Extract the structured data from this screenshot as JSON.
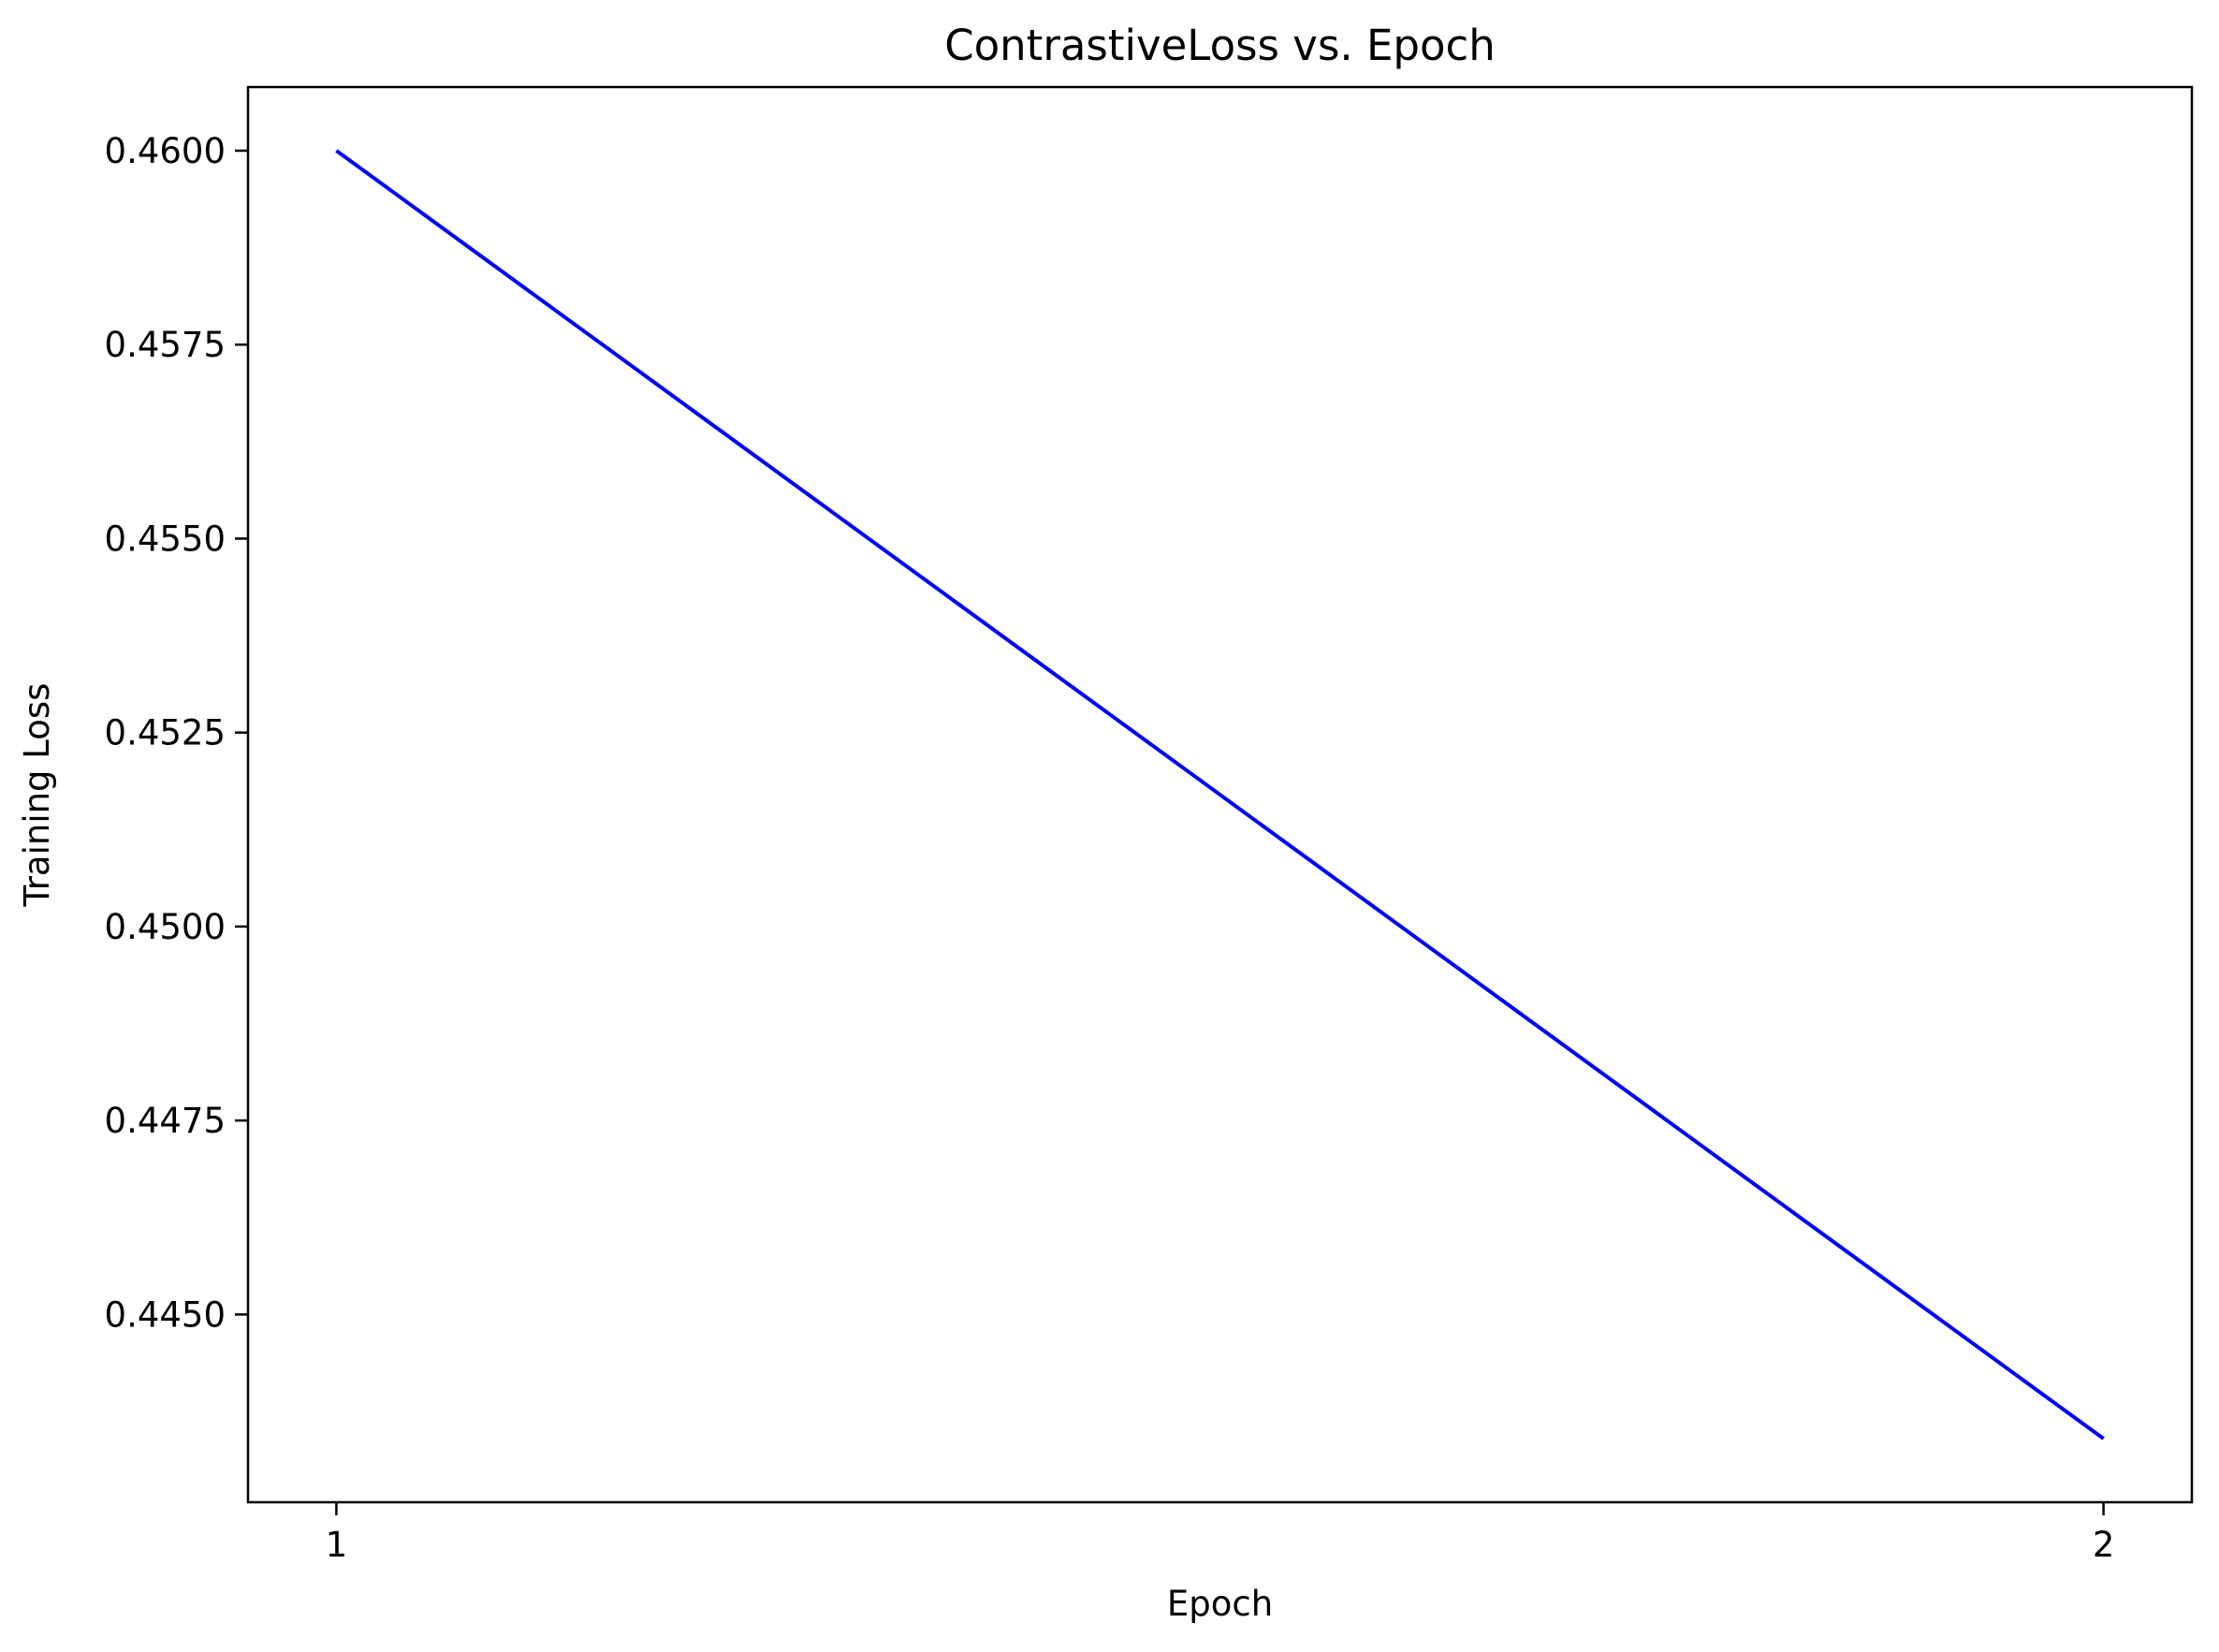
{
  "chart_data": {
    "type": "line",
    "title": "ContrastiveLoss vs. Epoch",
    "xlabel": "Epoch",
    "ylabel": "Training Loss",
    "x": [
      1,
      2
    ],
    "series": [
      {
        "values": [
          0.46,
          0.4434
        ],
        "color": "#0000ff"
      }
    ],
    "xlim": [
      0.95,
      2.05
    ],
    "ylim": [
      0.44258,
      0.46082
    ],
    "xticks": [
      1,
      2
    ],
    "xtick_labels": [
      "1",
      "2"
    ],
    "yticks": [
      0.445,
      0.4475,
      0.45,
      0.4525,
      0.455,
      0.4575,
      0.46
    ],
    "ytick_labels": [
      "0.4450",
      "0.4475",
      "0.4500",
      "0.4525",
      "0.4550",
      "0.4575",
      "0.4600"
    ],
    "grid": false,
    "legend": false
  }
}
